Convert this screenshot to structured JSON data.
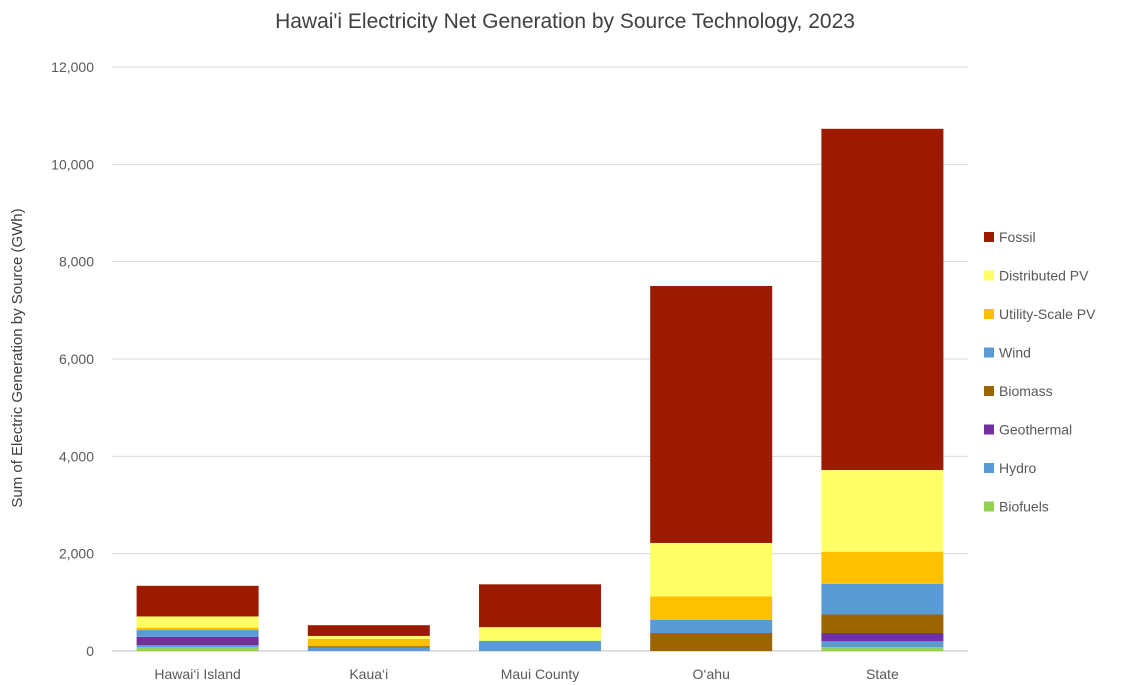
{
  "chart_data": {
    "type": "bar",
    "stacked": true,
    "title": "Hawai'i Electricity Net Generation by Source Technology, 2023",
    "xlabel": "",
    "ylabel": "Sum of Electric Generation by Source (GWh)",
    "ylim": [
      0,
      12000
    ],
    "yticks": [
      0,
      2000,
      4000,
      6000,
      8000,
      10000,
      12000
    ],
    "ytick_labels": [
      "0",
      "2,000",
      "4,000",
      "6,000",
      "8,000",
      "10,000",
      "12,000"
    ],
    "grid": true,
    "legend_position": "right",
    "categories": [
      "Hawai‘i Island",
      "Kaua‘i",
      "Maui County",
      "O‘ahu",
      "State"
    ],
    "series": [
      {
        "name": "Biofuels",
        "color": "#92D050",
        "values": [
          80,
          0,
          0,
          0,
          80
        ]
      },
      {
        "name": "Hydro",
        "color": "#5B9BD5",
        "values": [
          40,
          70,
          10,
          0,
          120
        ]
      },
      {
        "name": "Geothermal",
        "color": "#7030A0",
        "values": [
          170,
          0,
          0,
          0,
          170
        ]
      },
      {
        "name": "Biomass",
        "color": "#9C6500",
        "values": [
          0,
          30,
          0,
          370,
          380
        ]
      },
      {
        "name": "Wind",
        "color": "#5B9BD5",
        "values": [
          140,
          0,
          200,
          270,
          630
        ]
      },
      {
        "name": "Utility-Scale PV",
        "color": "#FFC000",
        "values": [
          50,
          150,
          0,
          480,
          660
        ]
      },
      {
        "name": "Distributed PV",
        "color": "#FFFF66",
        "values": [
          230,
          60,
          280,
          1100,
          1680
        ]
      },
      {
        "name": "Fossil",
        "color": "#9B1A00",
        "values": [
          630,
          220,
          880,
          5280,
          7010
        ]
      }
    ],
    "legend_order": [
      "Fossil",
      "Distributed PV",
      "Utility-Scale PV",
      "Wind",
      "Biomass",
      "Geothermal",
      "Hydro",
      "Biofuels"
    ]
  }
}
